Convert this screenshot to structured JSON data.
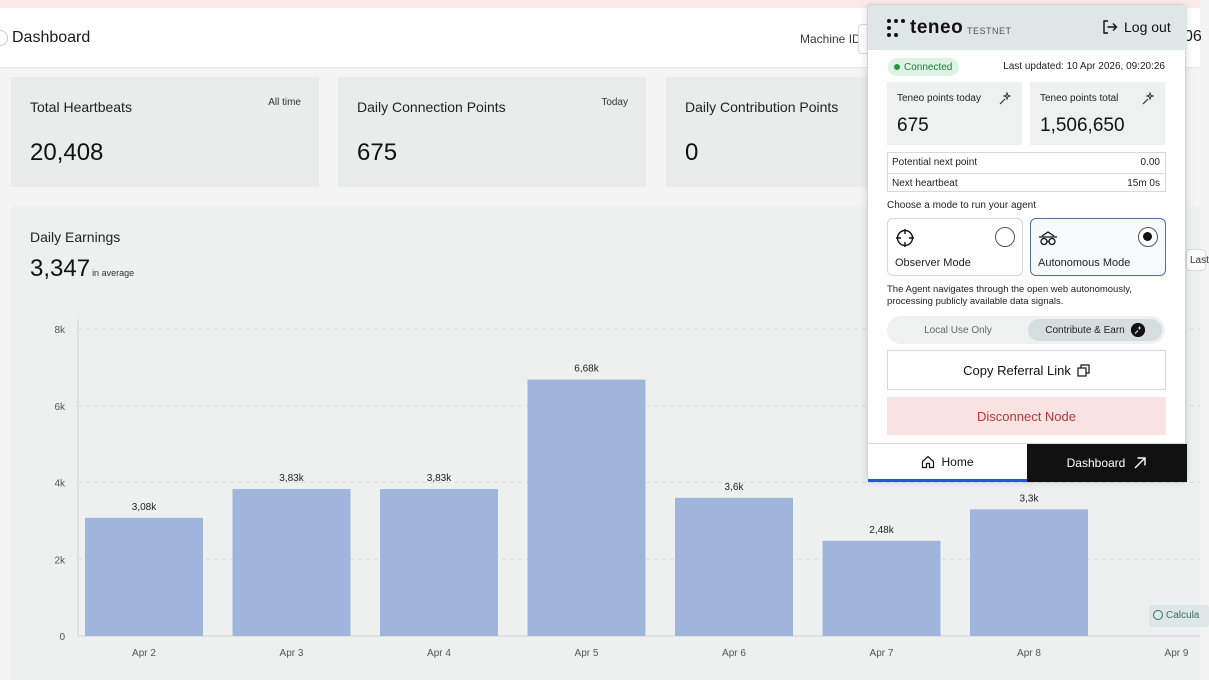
{
  "header": {
    "title": "Dashboard",
    "machine_label": "Machine ID",
    "right_text": "06"
  },
  "cards": [
    {
      "title": "Total Heartbeats",
      "tag": "All time",
      "value": "20,408"
    },
    {
      "title": "Daily Connection Points",
      "tag": "Today",
      "value": "675"
    },
    {
      "title": "Daily Contribution Points",
      "tag": "",
      "value": "0"
    }
  ],
  "earnings": {
    "title": "Daily Earnings",
    "average": "3,347",
    "average_suffix": "in average",
    "last_peek": "Last",
    "calc_peek": "Calcula"
  },
  "chart_data": {
    "type": "bar",
    "title": "Daily Earnings",
    "categories": [
      "Apr 2",
      "Apr 3",
      "Apr 4",
      "Apr 5",
      "Apr 6",
      "Apr 7",
      "Apr 8",
      "Apr 9"
    ],
    "values": [
      3080,
      3830,
      3830,
      6680,
      3600,
      2480,
      3300,
      null
    ],
    "data_labels": [
      "3,08k",
      "3,83k",
      "3,83k",
      "6,68k",
      "3,6k",
      "2,48k",
      "3,3k",
      ""
    ],
    "y_ticks": [
      0,
      2000,
      4000,
      6000,
      8000
    ],
    "y_tick_labels": [
      "0",
      "2k",
      "4k",
      "6k",
      "8k"
    ],
    "ylim": [
      0,
      8000
    ],
    "grid": true,
    "bar_color": "#9fb5dc"
  },
  "popup": {
    "logo": "teneo",
    "network": "TESTNET",
    "logout": "Log out",
    "status": "Connected",
    "last_updated": "Last updated: 10 Apr 2026, 09:20:26",
    "points_today_label": "Teneo points today",
    "points_today": "675",
    "points_total_label": "Teneo points total",
    "points_total": "1,506,650",
    "rows": [
      {
        "key": "Potential next point",
        "value": "0.00"
      },
      {
        "key": "Next heartbeat",
        "value": "15m 0s"
      }
    ],
    "mode_prompt": "Choose a mode to run your agent",
    "modes": [
      {
        "name": "Observer Mode",
        "icon": "crosshair-icon",
        "selected": false
      },
      {
        "name": "Autonomous Mode",
        "icon": "agent-glasses-icon",
        "selected": true
      }
    ],
    "mode_description": "The Agent navigates through the open web autonomously, processing publicly available data signals.",
    "toggle": {
      "local": "Local Use Only",
      "contribute": "Contribute & Earn"
    },
    "copy_referral": "Copy Referral Link",
    "disconnect": "Disconnect Node",
    "nav": {
      "home": "Home",
      "dashboard": "Dashboard"
    }
  }
}
